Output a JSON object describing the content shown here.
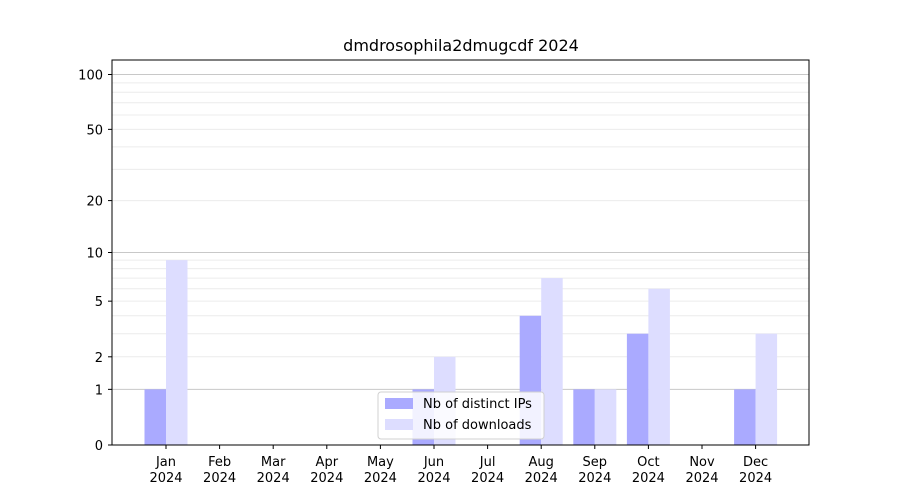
{
  "chart_data": {
    "type": "bar",
    "title": "dmdrosophila2dmugcdf 2024",
    "categories": [
      "Jan",
      "Feb",
      "Mar",
      "Apr",
      "May",
      "Jun",
      "Jul",
      "Aug",
      "Sep",
      "Oct",
      "Nov",
      "Dec"
    ],
    "category_year": "2024",
    "series": [
      {
        "name": "Nb of distinct IPs",
        "color": "#aaaaff",
        "values": [
          1,
          0,
          0,
          0,
          0,
          1,
          0,
          4,
          1,
          3,
          0,
          1
        ]
      },
      {
        "name": "Nb of downloads",
        "color": "#ddddff",
        "values": [
          9,
          0,
          0,
          0,
          0,
          2,
          0,
          7,
          1,
          6,
          0,
          3
        ]
      }
    ],
    "yscale": "log(1+y)",
    "yticks": [
      0,
      1,
      2,
      5,
      10,
      20,
      50,
      100
    ],
    "ylim": [
      0,
      120
    ],
    "grid": true,
    "legend_position": "lower center"
  }
}
